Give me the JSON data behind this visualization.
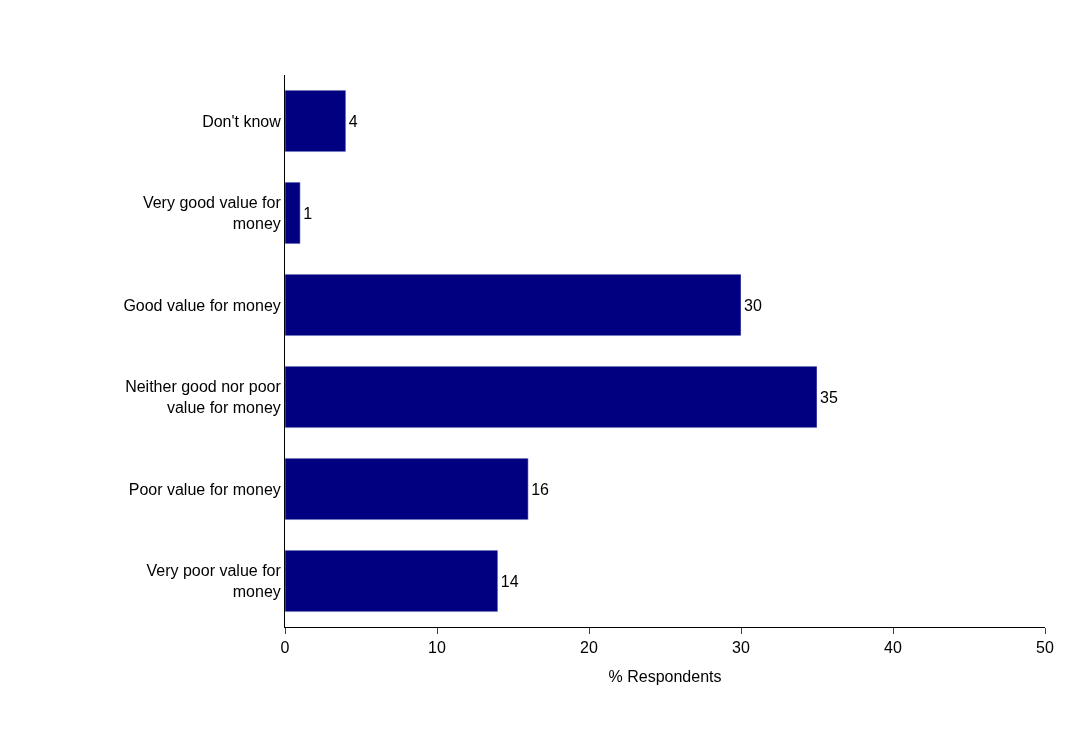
{
  "chart_data": {
    "type": "bar",
    "orientation": "horizontal",
    "xlabel": "% Respondents",
    "categories": [
      "Don't know",
      "Very good value for money",
      "Good value for money",
      "Neither good nor poor value for money",
      "Poor value for money",
      "Very poor value for money"
    ],
    "values": [
      4,
      1,
      30,
      35,
      16,
      14
    ],
    "color": "#000080",
    "xlim": [
      0,
      50
    ],
    "xticks": [
      0,
      10,
      20,
      30,
      40,
      50
    ],
    "data_labels": true,
    "grid": false,
    "legend": false
  }
}
